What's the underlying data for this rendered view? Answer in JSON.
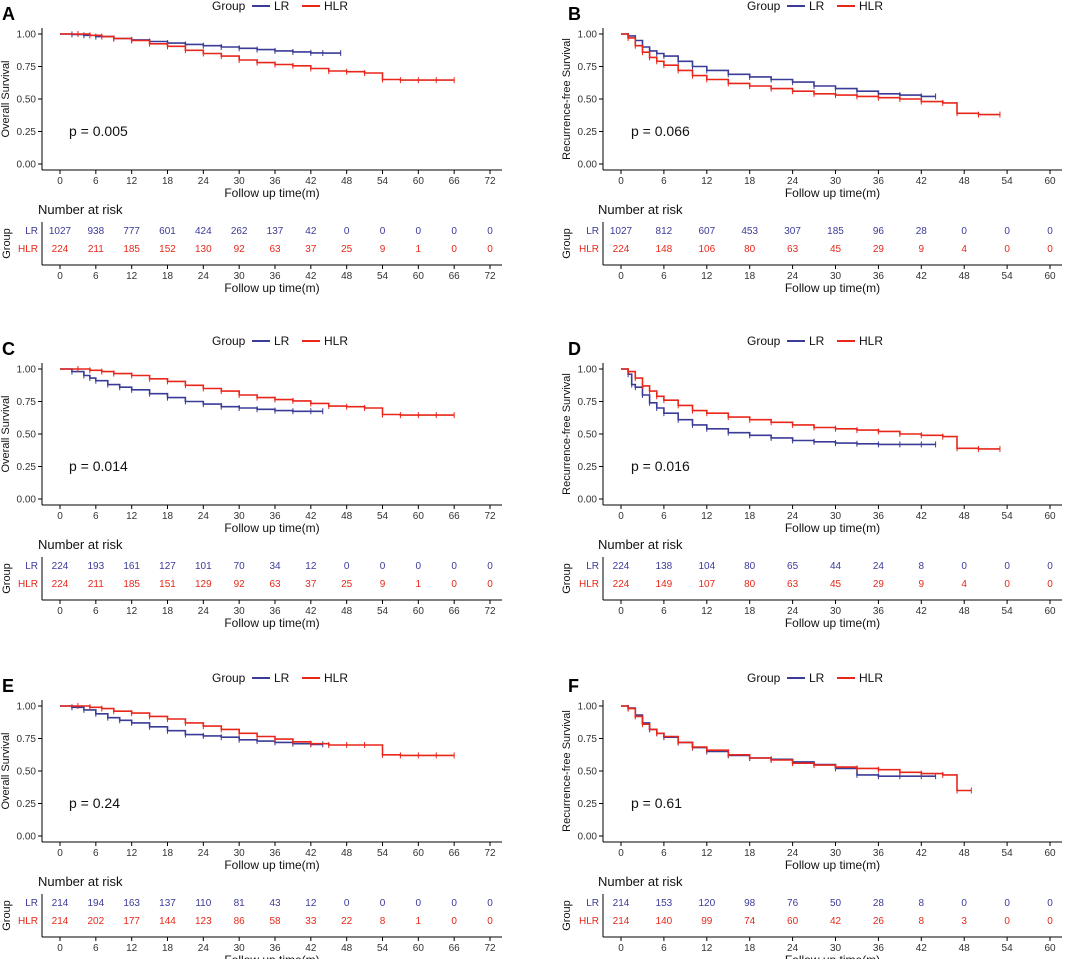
{
  "chart_data": [
    {
      "type": "line",
      "panel": "A",
      "legend_title": "Group",
      "ylabel": "Overall Survival",
      "xlabel": "Follow up time(m)",
      "xlim": [
        0,
        72
      ],
      "xticks": [
        "0",
        "6",
        "12",
        "18",
        "24",
        "30",
        "36",
        "42",
        "48",
        "54",
        "60",
        "66",
        "72"
      ],
      "ylim": [
        0,
        1
      ],
      "yticks": [
        "0.00",
        "0.25",
        "0.50",
        "0.75",
        "1.00"
      ],
      "pvalue": "p = 0.005",
      "risk_title": "Number at risk",
      "risk_group_title": "Group",
      "series": [
        {
          "name": "LR",
          "color": "#3b3b98",
          "x": [
            0,
            2,
            4,
            6,
            9,
            12,
            15,
            18,
            21,
            24,
            27,
            30,
            33,
            36,
            39,
            42,
            44,
            47
          ],
          "y": [
            1.0,
            0.997,
            0.99,
            0.98,
            0.965,
            0.955,
            0.942,
            0.93,
            0.92,
            0.91,
            0.9,
            0.89,
            0.88,
            0.87,
            0.862,
            0.855,
            0.853,
            0.853
          ],
          "risk": [
            "1027",
            "938",
            "777",
            "601",
            "424",
            "262",
            "137",
            "42",
            "0",
            "0",
            "0",
            "0",
            "0"
          ]
        },
        {
          "name": "HLR",
          "color": "#e8271a",
          "x": [
            0,
            3,
            5,
            7,
            9,
            12,
            15,
            18,
            21,
            24,
            27,
            30,
            33,
            36,
            39,
            42,
            45,
            48,
            51,
            54,
            57,
            60,
            63,
            66
          ],
          "y": [
            1.0,
            1.0,
            0.99,
            0.98,
            0.965,
            0.95,
            0.925,
            0.905,
            0.875,
            0.85,
            0.83,
            0.8,
            0.78,
            0.765,
            0.755,
            0.735,
            0.715,
            0.71,
            0.7,
            0.65,
            0.645,
            0.645,
            0.645,
            0.645
          ],
          "risk": [
            "224",
            "211",
            "185",
            "152",
            "130",
            "92",
            "63",
            "37",
            "25",
            "9",
            "1",
            "0",
            "0"
          ]
        }
      ]
    },
    {
      "type": "line",
      "panel": "B",
      "legend_title": "Group",
      "ylabel": "Recurrence-free Survival",
      "xlabel": "Follow up time(m)",
      "xlim": [
        0,
        60
      ],
      "xticks": [
        "0",
        "6",
        "12",
        "18",
        "24",
        "30",
        "36",
        "42",
        "48",
        "54",
        "60"
      ],
      "ylim": [
        0,
        1
      ],
      "yticks": [
        "0.00",
        "0.25",
        "0.50",
        "0.75",
        "1.00"
      ],
      "pvalue": "p = 0.066",
      "risk_title": "Number at risk",
      "risk_group_title": "Group",
      "series": [
        {
          "name": "LR",
          "color": "#3b3b98",
          "x": [
            0,
            1,
            2,
            3,
            4,
            5,
            6,
            8,
            10,
            12,
            15,
            18,
            21,
            24,
            27,
            30,
            33,
            36,
            39,
            42,
            44
          ],
          "y": [
            1.0,
            0.985,
            0.95,
            0.9,
            0.87,
            0.85,
            0.83,
            0.79,
            0.75,
            0.72,
            0.69,
            0.67,
            0.65,
            0.63,
            0.6,
            0.58,
            0.56,
            0.54,
            0.53,
            0.52,
            0.52
          ],
          "risk": [
            "1027",
            "812",
            "607",
            "453",
            "307",
            "185",
            "96",
            "28",
            "0",
            "0",
            "0"
          ]
        },
        {
          "name": "HLR",
          "color": "#e8271a",
          "x": [
            0,
            1,
            2,
            3,
            4,
            5,
            6,
            8,
            10,
            12,
            15,
            18,
            21,
            24,
            27,
            30,
            33,
            36,
            39,
            42,
            45,
            47,
            50,
            53
          ],
          "y": [
            1.0,
            0.97,
            0.91,
            0.86,
            0.82,
            0.79,
            0.76,
            0.72,
            0.68,
            0.65,
            0.62,
            0.6,
            0.58,
            0.56,
            0.54,
            0.53,
            0.52,
            0.51,
            0.5,
            0.48,
            0.47,
            0.39,
            0.38,
            0.38
          ],
          "risk": [
            "224",
            "148",
            "106",
            "80",
            "63",
            "45",
            "29",
            "9",
            "4",
            "0",
            "0"
          ]
        }
      ]
    },
    {
      "type": "line",
      "panel": "C",
      "legend_title": "Group",
      "ylabel": "Overall Survival",
      "xlabel": "Follow up time(m)",
      "xlim": [
        0,
        72
      ],
      "xticks": [
        "0",
        "6",
        "12",
        "18",
        "24",
        "30",
        "36",
        "42",
        "48",
        "54",
        "60",
        "66",
        "72"
      ],
      "ylim": [
        0,
        1
      ],
      "yticks": [
        "0.00",
        "0.25",
        "0.50",
        "0.75",
        "1.00"
      ],
      "pvalue": "p = 0.014",
      "risk_title": "Number at risk",
      "risk_group_title": "Group",
      "series": [
        {
          "name": "LR",
          "color": "#3b3b98",
          "x": [
            0,
            2,
            4,
            5,
            6,
            8,
            10,
            12,
            15,
            18,
            21,
            24,
            27,
            30,
            33,
            36,
            39,
            42,
            44
          ],
          "y": [
            1.0,
            0.98,
            0.95,
            0.93,
            0.91,
            0.88,
            0.86,
            0.84,
            0.81,
            0.78,
            0.75,
            0.73,
            0.71,
            0.7,
            0.69,
            0.68,
            0.675,
            0.675,
            0.675
          ],
          "risk": [
            "224",
            "193",
            "161",
            "127",
            "101",
            "70",
            "34",
            "12",
            "0",
            "0",
            "0",
            "0",
            "0"
          ]
        },
        {
          "name": "HLR",
          "color": "#e8271a",
          "x": [
            0,
            3,
            5,
            7,
            9,
            12,
            15,
            18,
            21,
            24,
            27,
            30,
            33,
            36,
            39,
            42,
            45,
            48,
            51,
            54,
            57,
            60,
            63,
            66
          ],
          "y": [
            1.0,
            1.0,
            0.99,
            0.98,
            0.965,
            0.95,
            0.925,
            0.905,
            0.875,
            0.85,
            0.83,
            0.8,
            0.78,
            0.765,
            0.755,
            0.735,
            0.715,
            0.71,
            0.7,
            0.65,
            0.645,
            0.645,
            0.645,
            0.645
          ],
          "risk": [
            "224",
            "211",
            "185",
            "151",
            "129",
            "92",
            "63",
            "37",
            "25",
            "9",
            "1",
            "0",
            "0"
          ]
        }
      ]
    },
    {
      "type": "line",
      "panel": "D",
      "legend_title": "Group",
      "ylabel": "Recurrence-free Survival",
      "xlabel": "Follow up time(m)",
      "xlim": [
        0,
        60
      ],
      "xticks": [
        "0",
        "6",
        "12",
        "18",
        "24",
        "30",
        "36",
        "42",
        "48",
        "54",
        "60"
      ],
      "ylim": [
        0,
        1
      ],
      "yticks": [
        "0.00",
        "0.25",
        "0.50",
        "0.75",
        "1.00"
      ],
      "pvalue": "p = 0.016",
      "risk_title": "Number at risk",
      "risk_group_title": "Group",
      "series": [
        {
          "name": "LR",
          "color": "#3b3b98",
          "x": [
            0,
            1,
            1.5,
            2,
            3,
            4,
            5,
            6,
            8,
            10,
            12,
            15,
            18,
            21,
            24,
            27,
            30,
            33,
            36,
            39,
            42,
            44
          ],
          "y": [
            1.0,
            0.96,
            0.88,
            0.86,
            0.8,
            0.74,
            0.7,
            0.66,
            0.61,
            0.57,
            0.54,
            0.51,
            0.49,
            0.47,
            0.45,
            0.44,
            0.43,
            0.425,
            0.42,
            0.42,
            0.42,
            0.42
          ],
          "risk": [
            "224",
            "138",
            "104",
            "80",
            "65",
            "44",
            "24",
            "8",
            "0",
            "0",
            "0"
          ]
        },
        {
          "name": "HLR",
          "color": "#e8271a",
          "x": [
            0,
            1,
            2,
            3,
            4,
            5,
            6,
            8,
            10,
            12,
            15,
            18,
            21,
            24,
            27,
            30,
            33,
            36,
            39,
            42,
            45,
            47,
            50,
            53
          ],
          "y": [
            1.0,
            0.98,
            0.93,
            0.87,
            0.83,
            0.79,
            0.76,
            0.72,
            0.68,
            0.66,
            0.63,
            0.61,
            0.59,
            0.57,
            0.55,
            0.54,
            0.53,
            0.52,
            0.5,
            0.49,
            0.48,
            0.39,
            0.385,
            0.385
          ],
          "risk": [
            "224",
            "149",
            "107",
            "80",
            "63",
            "45",
            "29",
            "9",
            "4",
            "0",
            "0"
          ]
        }
      ]
    },
    {
      "type": "line",
      "panel": "E",
      "legend_title": "Group",
      "ylabel": "Overall Survival",
      "xlabel": "Follow up time(m)",
      "xlim": [
        0,
        72
      ],
      "xticks": [
        "0",
        "6",
        "12",
        "18",
        "24",
        "30",
        "36",
        "42",
        "48",
        "54",
        "60",
        "66",
        "72"
      ],
      "ylim": [
        0,
        1
      ],
      "yticks": [
        "0.00",
        "0.25",
        "0.50",
        "0.75",
        "1.00"
      ],
      "pvalue": "p = 0.24",
      "risk_title": "Number at risk",
      "risk_group_title": "Group",
      "series": [
        {
          "name": "LR",
          "color": "#3b3b98",
          "x": [
            0,
            2,
            4,
            6,
            8,
            10,
            12,
            15,
            18,
            21,
            24,
            27,
            30,
            33,
            36,
            39,
            42,
            44
          ],
          "y": [
            1.0,
            0.99,
            0.97,
            0.94,
            0.91,
            0.89,
            0.87,
            0.84,
            0.81,
            0.78,
            0.77,
            0.76,
            0.74,
            0.73,
            0.72,
            0.71,
            0.705,
            0.705
          ],
          "risk": [
            "214",
            "194",
            "163",
            "137",
            "110",
            "81",
            "43",
            "12",
            "0",
            "0",
            "0",
            "0",
            "0"
          ]
        },
        {
          "name": "HLR",
          "color": "#e8271a",
          "x": [
            0,
            3,
            5,
            7,
            9,
            12,
            15,
            18,
            21,
            24,
            27,
            30,
            33,
            36,
            39,
            42,
            45,
            48,
            51,
            54,
            57,
            60,
            63,
            66
          ],
          "y": [
            1.0,
            1.0,
            0.99,
            0.98,
            0.96,
            0.945,
            0.92,
            0.9,
            0.87,
            0.845,
            0.82,
            0.79,
            0.765,
            0.745,
            0.725,
            0.71,
            0.7,
            0.7,
            0.7,
            0.625,
            0.62,
            0.62,
            0.62,
            0.62
          ],
          "risk": [
            "214",
            "202",
            "177",
            "144",
            "123",
            "86",
            "58",
            "33",
            "22",
            "8",
            "1",
            "0",
            "0"
          ]
        }
      ]
    },
    {
      "type": "line",
      "panel": "F",
      "legend_title": "Group",
      "ylabel": "Recurrence-free Survival",
      "xlabel": "Follow up time(m)",
      "xlim": [
        0,
        60
      ],
      "xticks": [
        "0",
        "6",
        "12",
        "18",
        "24",
        "30",
        "36",
        "42",
        "48",
        "54",
        "60"
      ],
      "ylim": [
        0,
        1
      ],
      "yticks": [
        "0.00",
        "0.25",
        "0.50",
        "0.75",
        "1.00"
      ],
      "pvalue": "p = 0.61",
      "risk_title": "Number at risk",
      "risk_group_title": "Group",
      "series": [
        {
          "name": "LR",
          "color": "#3b3b98",
          "x": [
            0,
            1,
            2,
            3,
            4,
            5,
            6,
            8,
            10,
            12,
            15,
            18,
            21,
            24,
            27,
            30,
            33,
            36,
            39,
            42,
            44
          ],
          "y": [
            1.0,
            0.985,
            0.93,
            0.87,
            0.82,
            0.79,
            0.76,
            0.72,
            0.68,
            0.65,
            0.62,
            0.6,
            0.59,
            0.57,
            0.55,
            0.52,
            0.47,
            0.46,
            0.46,
            0.46,
            0.46
          ],
          "risk": [
            "214",
            "153",
            "120",
            "98",
            "76",
            "50",
            "28",
            "8",
            "0",
            "0",
            "0"
          ]
        },
        {
          "name": "HLR",
          "color": "#e8271a",
          "x": [
            0,
            1,
            2,
            3,
            4,
            5,
            6,
            8,
            10,
            12,
            15,
            18,
            21,
            24,
            27,
            30,
            33,
            36,
            39,
            42,
            45,
            47,
            49
          ],
          "y": [
            1.0,
            0.98,
            0.92,
            0.86,
            0.82,
            0.79,
            0.765,
            0.72,
            0.685,
            0.66,
            0.625,
            0.6,
            0.585,
            0.56,
            0.545,
            0.53,
            0.52,
            0.51,
            0.49,
            0.48,
            0.47,
            0.35,
            0.35
          ],
          "risk": [
            "214",
            "140",
            "99",
            "74",
            "60",
            "42",
            "26",
            "8",
            "3",
            "0",
            "0"
          ]
        }
      ]
    }
  ]
}
